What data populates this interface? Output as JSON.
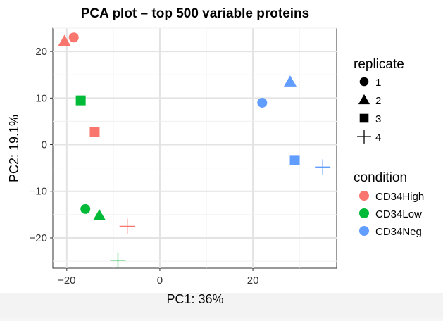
{
  "chart_data": {
    "type": "scatter",
    "title": "PCA plot – top 500 variable proteins",
    "xlabel": "PC1: 36%",
    "ylabel": "PC2: 19.1%",
    "xlim": [
      -23,
      38
    ],
    "ylim": [
      -26.5,
      25
    ],
    "x_ticks": [
      -20,
      0,
      20
    ],
    "x_tick_labels": [
      "−20",
      "0",
      "20"
    ],
    "y_ticks": [
      -20,
      -10,
      0,
      10,
      20
    ],
    "y_tick_labels": [
      "−20",
      "−10",
      "0",
      "10",
      "20"
    ],
    "grid": true,
    "legend_position": "right",
    "legends": {
      "replicate": {
        "title": "replicate",
        "entries": [
          {
            "label": "1",
            "shape": "circle"
          },
          {
            "label": "2",
            "shape": "triangle"
          },
          {
            "label": "3",
            "shape": "square"
          },
          {
            "label": "4",
            "shape": "plus"
          }
        ]
      },
      "condition": {
        "title": "condition",
        "entries": [
          {
            "label": "CD34High",
            "color": "#f8766d"
          },
          {
            "label": "CD34Low",
            "color": "#00ba38"
          },
          {
            "label": "CD34Neg",
            "color": "#619cff"
          }
        ]
      }
    },
    "points": [
      {
        "condition": "CD34High",
        "replicate": "1",
        "x": -18.5,
        "y": 23.0
      },
      {
        "condition": "CD34High",
        "replicate": "2",
        "x": -20.5,
        "y": 22.2
      },
      {
        "condition": "CD34High",
        "replicate": "3",
        "x": -14.0,
        "y": 2.8
      },
      {
        "condition": "CD34High",
        "replicate": "4",
        "x": -7.0,
        "y": -17.5
      },
      {
        "condition": "CD34Low",
        "replicate": "1",
        "x": -16.0,
        "y": -13.8
      },
      {
        "condition": "CD34Low",
        "replicate": "2",
        "x": -13.0,
        "y": -15.2
      },
      {
        "condition": "CD34Low",
        "replicate": "3",
        "x": -17.0,
        "y": 9.5
      },
      {
        "condition": "CD34Low",
        "replicate": "4",
        "x": -9.0,
        "y": -24.8
      },
      {
        "condition": "CD34Neg",
        "replicate": "1",
        "x": 22.0,
        "y": 9.0
      },
      {
        "condition": "CD34Neg",
        "replicate": "2",
        "x": 28.0,
        "y": 13.5
      },
      {
        "condition": "CD34Neg",
        "replicate": "3",
        "x": 29.0,
        "y": -3.3
      },
      {
        "condition": "CD34Neg",
        "replicate": "4",
        "x": 35.0,
        "y": -4.8
      }
    ]
  }
}
